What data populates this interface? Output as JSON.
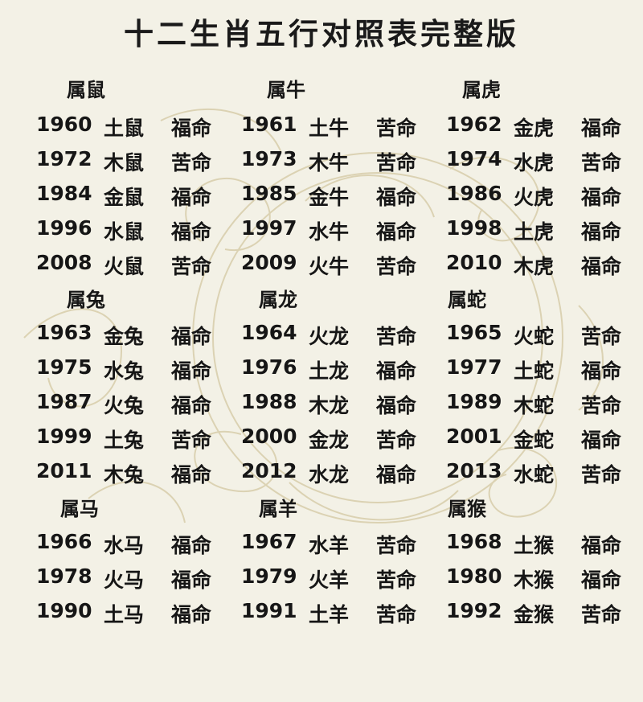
{
  "title": "十二生肖五行对照表完整版",
  "groups": [
    {
      "zodiacs": [
        {
          "name": "属鼠",
          "rows": [
            {
              "year": "1960",
              "element": "土鼠",
              "fate": "福命"
            },
            {
              "year": "1972",
              "element": "木鼠",
              "fate": "苦命"
            },
            {
              "year": "1984",
              "element": "金鼠",
              "fate": "福命"
            },
            {
              "year": "1996",
              "element": "水鼠",
              "fate": "福命"
            },
            {
              "year": "2008",
              "element": "火鼠",
              "fate": "苦命"
            }
          ]
        },
        {
          "name": "属牛",
          "rows": [
            {
              "year": "1961",
              "element": "土牛",
              "fate": "苦命"
            },
            {
              "year": "1973",
              "element": "木牛",
              "fate": "苦命"
            },
            {
              "year": "1985",
              "element": "金牛",
              "fate": "福命"
            },
            {
              "year": "1997",
              "element": "水牛",
              "fate": "福命"
            },
            {
              "year": "2009",
              "element": "火牛",
              "fate": "苦命"
            }
          ]
        },
        {
          "name": "属虎",
          "rows": [
            {
              "year": "1962",
              "element": "金虎",
              "fate": "福命"
            },
            {
              "year": "1974",
              "element": "水虎",
              "fate": "苦命"
            },
            {
              "year": "1986",
              "element": "火虎",
              "fate": "福命"
            },
            {
              "year": "1998",
              "element": "土虎",
              "fate": "福命"
            },
            {
              "year": "2010",
              "element": "木虎",
              "fate": "福命"
            }
          ]
        }
      ]
    },
    {
      "zodiacs": [
        {
          "name": "属兔",
          "rows": [
            {
              "year": "1963",
              "element": "金兔",
              "fate": "福命"
            },
            {
              "year": "1975",
              "element": "水兔",
              "fate": "福命"
            },
            {
              "year": "1987",
              "element": "火兔",
              "fate": "福命"
            },
            {
              "year": "1999",
              "element": "土兔",
              "fate": "苦命"
            },
            {
              "year": "2011",
              "element": "木兔",
              "fate": "福命"
            }
          ]
        },
        {
          "name": "属龙",
          "rows": [
            {
              "year": "1964",
              "element": "火龙",
              "fate": "苦命"
            },
            {
              "year": "1976",
              "element": "土龙",
              "fate": "福命"
            },
            {
              "year": "1988",
              "element": "木龙",
              "fate": "福命"
            },
            {
              "year": "2000",
              "element": "金龙",
              "fate": "苦命"
            },
            {
              "year": "2012",
              "element": "水龙",
              "fate": "福命"
            }
          ]
        },
        {
          "name": "属蛇",
          "rows": [
            {
              "year": "1965",
              "element": "火蛇",
              "fate": "苦命"
            },
            {
              "year": "1977",
              "element": "土蛇",
              "fate": "福命"
            },
            {
              "year": "1989",
              "element": "木蛇",
              "fate": "苦命"
            },
            {
              "year": "2001",
              "element": "金蛇",
              "fate": "福命"
            },
            {
              "year": "2013",
              "element": "水蛇",
              "fate": "苦命"
            }
          ]
        }
      ]
    },
    {
      "zodiacs": [
        {
          "name": "属马",
          "rows": [
            {
              "year": "1966",
              "element": "水马",
              "fate": "福命"
            },
            {
              "year": "1978",
              "element": "火马",
              "fate": "福命"
            },
            {
              "year": "1990",
              "element": "土马",
              "fate": "福命"
            }
          ]
        },
        {
          "name": "属羊",
          "rows": [
            {
              "year": "1967",
              "element": "水羊",
              "fate": "苦命"
            },
            {
              "year": "1979",
              "element": "火羊",
              "fate": "苦命"
            },
            {
              "year": "1991",
              "element": "土羊",
              "fate": "苦命"
            }
          ]
        },
        {
          "name": "属猴",
          "rows": [
            {
              "year": "1968",
              "element": "土猴",
              "fate": "福命"
            },
            {
              "year": "1980",
              "element": "木猴",
              "fate": "福命"
            },
            {
              "year": "1992",
              "element": "金猴",
              "fate": "苦命"
            }
          ]
        }
      ]
    }
  ]
}
